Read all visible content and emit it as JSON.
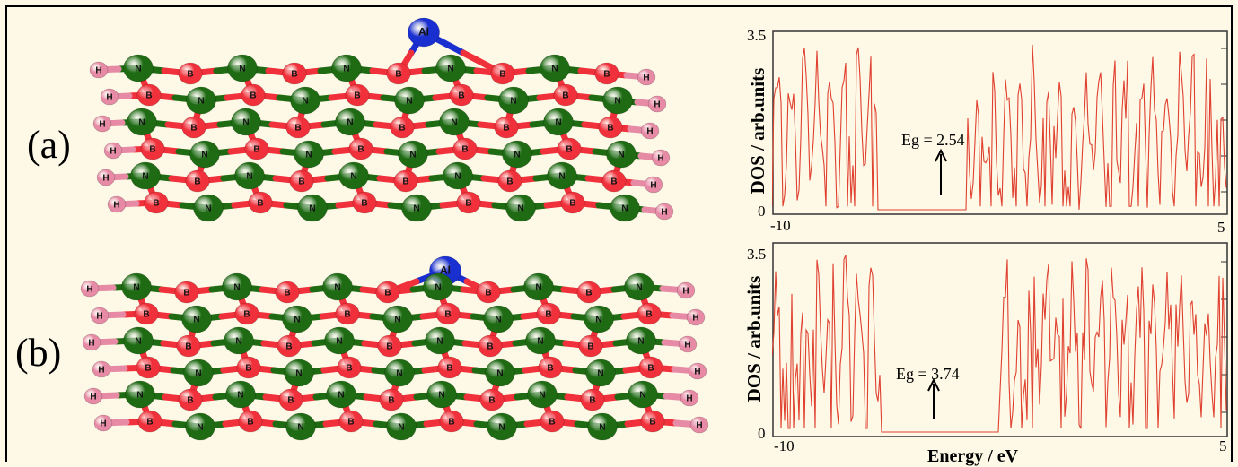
{
  "panels": [
    {
      "label": "(a)",
      "molecule": {
        "dopant": "Al",
        "dopant_site_replaces": "N",
        "atom_labels": {
          "boron": "B",
          "nitrogen": "N",
          "hydrogen": "H",
          "aluminum": "Al"
        }
      },
      "dos": {
        "ylabel": "DOS / arb.units",
        "y_tick_labels": [
          "3.5",
          "0"
        ],
        "x_tick_labels": [
          "-10",
          "5"
        ],
        "annotation": "Eg = 2.54"
      }
    },
    {
      "label": "(b)",
      "molecule": {
        "dopant": "Al",
        "dopant_site_replaces": "B",
        "atom_labels": {
          "boron": "B",
          "nitrogen": "N",
          "hydrogen": "H",
          "aluminum": "Al"
        }
      },
      "dos": {
        "ylabel": "DOS / arb.units",
        "y_tick_labels": [
          "3.5",
          "0"
        ],
        "x_tick_labels": [
          "-10",
          "5"
        ],
        "annotation": "Eg = 3.74",
        "xlabel": "Energy / eV"
      }
    }
  ],
  "colors": {
    "boron": "#f0303a",
    "nitrogen": "#1e6b14",
    "hydrogen": "#e68aa6",
    "aluminum": "#1a2fd0",
    "dos_line": "#e04030",
    "background": "#fdf9e6"
  }
}
